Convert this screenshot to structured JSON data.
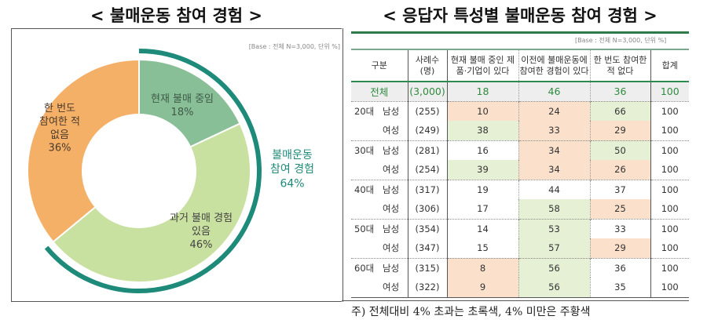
{
  "chart_data": [
    {
      "type": "pie",
      "title": "< 불매운동 참여 경험 >",
      "base_note": "[Base : 전체 N=3,000, 단위 %]",
      "slices": [
        {
          "label": "현재 불매 중임",
          "value": 18,
          "color": "#88bf97"
        },
        {
          "label": "과거 불매 경험 있음",
          "value": 46,
          "color": "#c8e0a0"
        },
        {
          "label": "한 번도 참여한 적 없음",
          "value": 36,
          "color": "#f5b068"
        }
      ],
      "annotation": {
        "label": "불매운동 참여 경험",
        "value": 64,
        "color": "#1e8a7a"
      }
    },
    {
      "type": "table",
      "title": "< 응답자 특성별 불매운동 참여 경험 >",
      "base_note": "[Base : 전체 N=3,000, 단위 %]",
      "headers": [
        "구분",
        "사례수 (명)",
        "현재 불매 중인 제품·기업이 있다",
        "이전에 불매운동에 참여한 경험이 있다",
        "한 번도 참여한 적 없다",
        "합계"
      ],
      "total": {
        "label": "전체",
        "n": "(3,000)",
        "values": [
          18,
          46,
          36,
          100
        ]
      },
      "rows": [
        {
          "age": "20대",
          "sex": "남성",
          "n": "(255)",
          "values": [
            10,
            24,
            66,
            100
          ],
          "hl": [
            "o",
            "o",
            "g",
            ""
          ]
        },
        {
          "age": "",
          "sex": "여성",
          "n": "(249)",
          "values": [
            38,
            33,
            29,
            100
          ],
          "hl": [
            "g",
            "o",
            "o",
            ""
          ]
        },
        {
          "age": "30대",
          "sex": "남성",
          "n": "(281)",
          "values": [
            16,
            34,
            50,
            100
          ],
          "hl": [
            "",
            "o",
            "g",
            ""
          ]
        },
        {
          "age": "",
          "sex": "여성",
          "n": "(254)",
          "values": [
            39,
            34,
            26,
            100
          ],
          "hl": [
            "g",
            "o",
            "o",
            ""
          ]
        },
        {
          "age": "40대",
          "sex": "남성",
          "n": "(317)",
          "values": [
            19,
            44,
            37,
            100
          ],
          "hl": [
            "",
            "",
            "",
            ""
          ]
        },
        {
          "age": "",
          "sex": "여성",
          "n": "(306)",
          "values": [
            17,
            58,
            25,
            100
          ],
          "hl": [
            "",
            "g",
            "o",
            ""
          ]
        },
        {
          "age": "50대",
          "sex": "남성",
          "n": "(354)",
          "values": [
            14,
            53,
            33,
            100
          ],
          "hl": [
            "",
            "g",
            "",
            ""
          ]
        },
        {
          "age": "",
          "sex": "여성",
          "n": "(347)",
          "values": [
            15,
            57,
            29,
            100
          ],
          "hl": [
            "",
            "g",
            "o",
            ""
          ]
        },
        {
          "age": "60대",
          "sex": "남성",
          "n": "(315)",
          "values": [
            8,
            56,
            36,
            100
          ],
          "hl": [
            "o",
            "g",
            "",
            ""
          ]
        },
        {
          "age": "",
          "sex": "여성",
          "n": "(322)",
          "values": [
            9,
            56,
            35,
            100
          ],
          "hl": [
            "o",
            "g",
            "",
            ""
          ]
        }
      ],
      "note": "주) 전체대비 4% 초과는 초록색, 4% 미만은 주황색",
      "colors": {
        "green": "#e6f0d5",
        "orange": "#fbe0cb"
      }
    }
  ]
}
